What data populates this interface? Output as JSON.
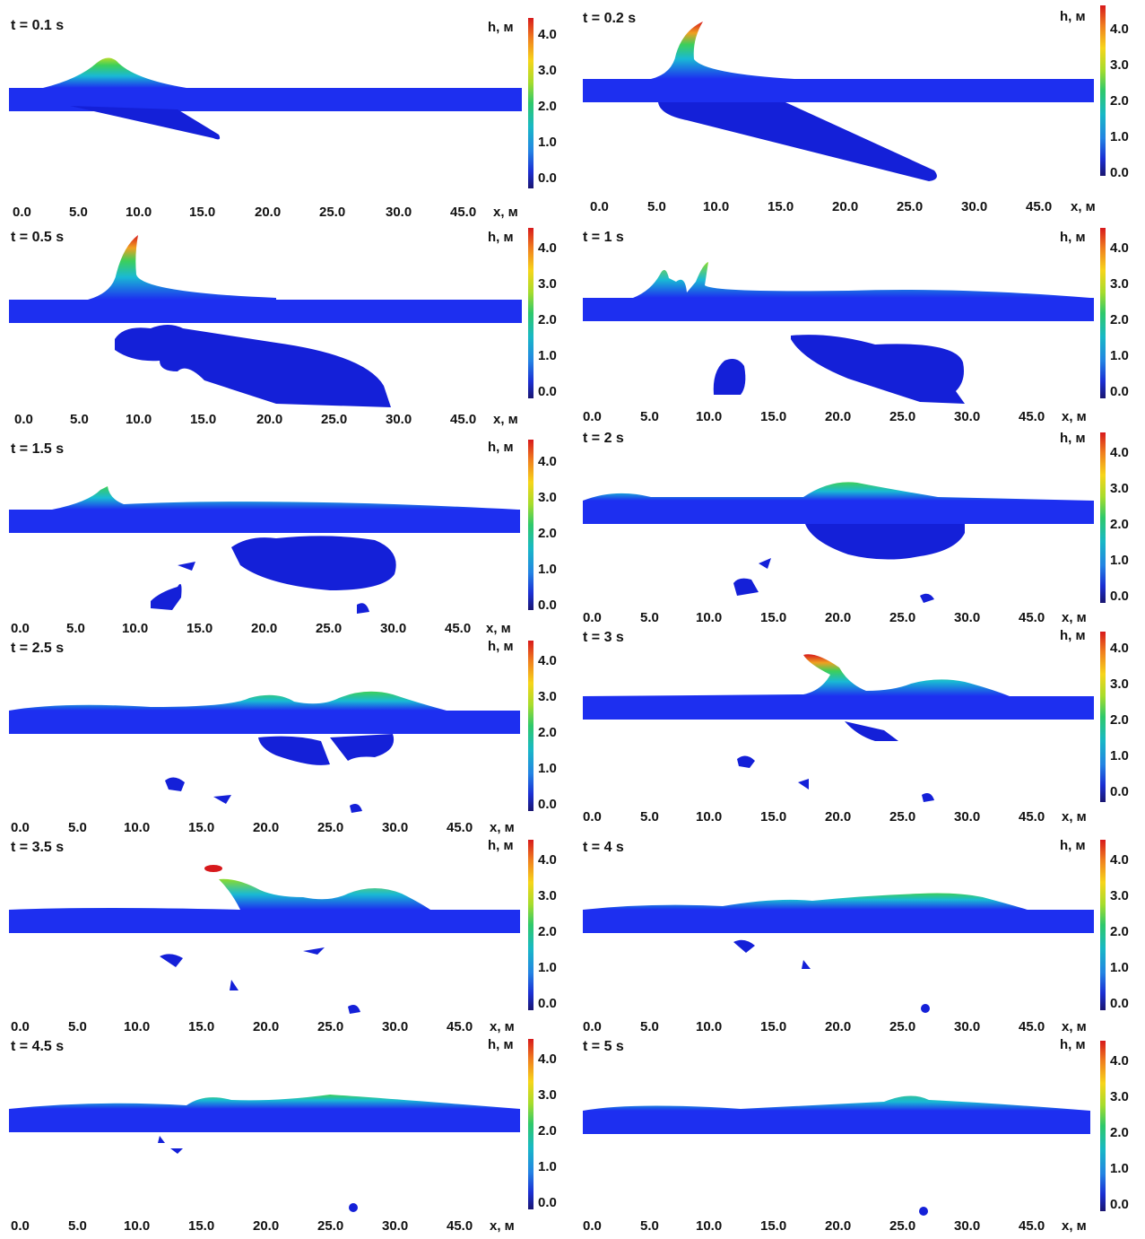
{
  "colorbar": {
    "label": "h, м",
    "ticks": [
      "4.0",
      "3.0",
      "2.0",
      "1.0",
      "0.0"
    ]
  },
  "x_axis": {
    "label": "x, м",
    "ticks": [
      "0.0",
      "5.0",
      "10.0",
      "15.0",
      "20.0",
      "25.0",
      "30.0",
      "45.0"
    ]
  },
  "panels": [
    {
      "time": "t = 0.1 s"
    },
    {
      "time": "t = 0.2 s"
    },
    {
      "time": "t = 0.5 s"
    },
    {
      "time": "t = 1 s"
    },
    {
      "time": "t = 1.5 s"
    },
    {
      "time": "t = 2 s"
    },
    {
      "time": "t = 2.5 s"
    },
    {
      "time": "t = 3 s"
    },
    {
      "time": "t = 3.5 s"
    },
    {
      "time": "t = 4 s"
    },
    {
      "time": "t = 4.5 s"
    },
    {
      "time": "t = 5 s"
    }
  ],
  "colors": {
    "water": "#1d2ff0",
    "body": "#1420d8",
    "crest": "#d7191c"
  }
}
